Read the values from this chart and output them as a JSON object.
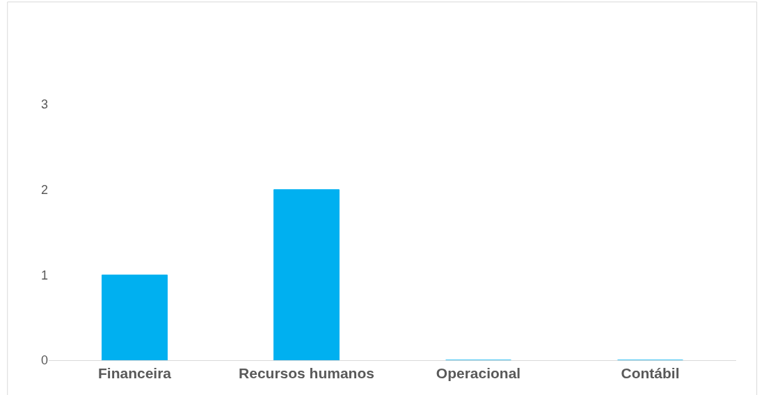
{
  "chart_data": {
    "type": "bar",
    "categories": [
      "Financeira",
      "Recursos humanos",
      "Operacional",
      "Contábil"
    ],
    "values": [
      1,
      2,
      0,
      0
    ],
    "color": "#00b0f0",
    "ylim": [
      0,
      3
    ],
    "yticks": [
      0,
      1,
      2,
      3
    ]
  }
}
